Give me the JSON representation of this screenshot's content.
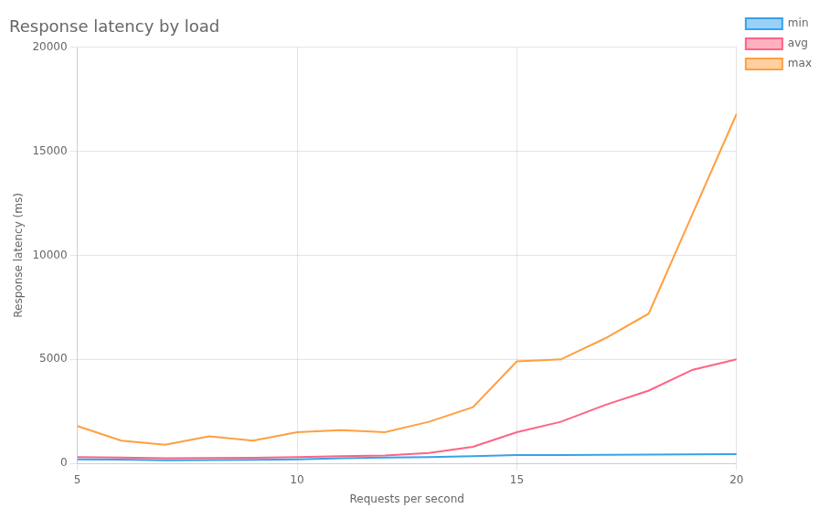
{
  "chart_data": {
    "type": "line",
    "title": "Response latency by load",
    "xlabel": "Requests per second",
    "ylabel": "Response latency (ms)",
    "x": [
      5,
      6,
      7,
      8,
      9,
      10,
      11,
      12,
      13,
      14,
      15,
      16,
      17,
      18,
      19,
      20
    ],
    "series": [
      {
        "name": "min",
        "values": [
          200,
          180,
          150,
          160,
          170,
          200,
          250,
          280,
          300,
          350,
          400,
          400,
          420,
          430,
          440,
          450
        ]
      },
      {
        "name": "avg",
        "values": [
          300,
          280,
          250,
          260,
          270,
          300,
          350,
          380,
          500,
          800,
          1500,
          2000,
          2800,
          3500,
          4500,
          5000
        ]
      },
      {
        "name": "max",
        "values": [
          1800,
          1100,
          900,
          1300,
          1100,
          1500,
          1600,
          1500,
          2000,
          2700,
          4900,
          5000,
          6000,
          7200,
          12000,
          16800
        ]
      }
    ],
    "xlim": [
      5,
      20
    ],
    "xticks": [
      5,
      10,
      15,
      20
    ],
    "ylim": [
      0,
      20000
    ],
    "yticks": [
      0,
      5000,
      10000,
      15000,
      20000
    ],
    "grid": true,
    "legend": "right"
  }
}
